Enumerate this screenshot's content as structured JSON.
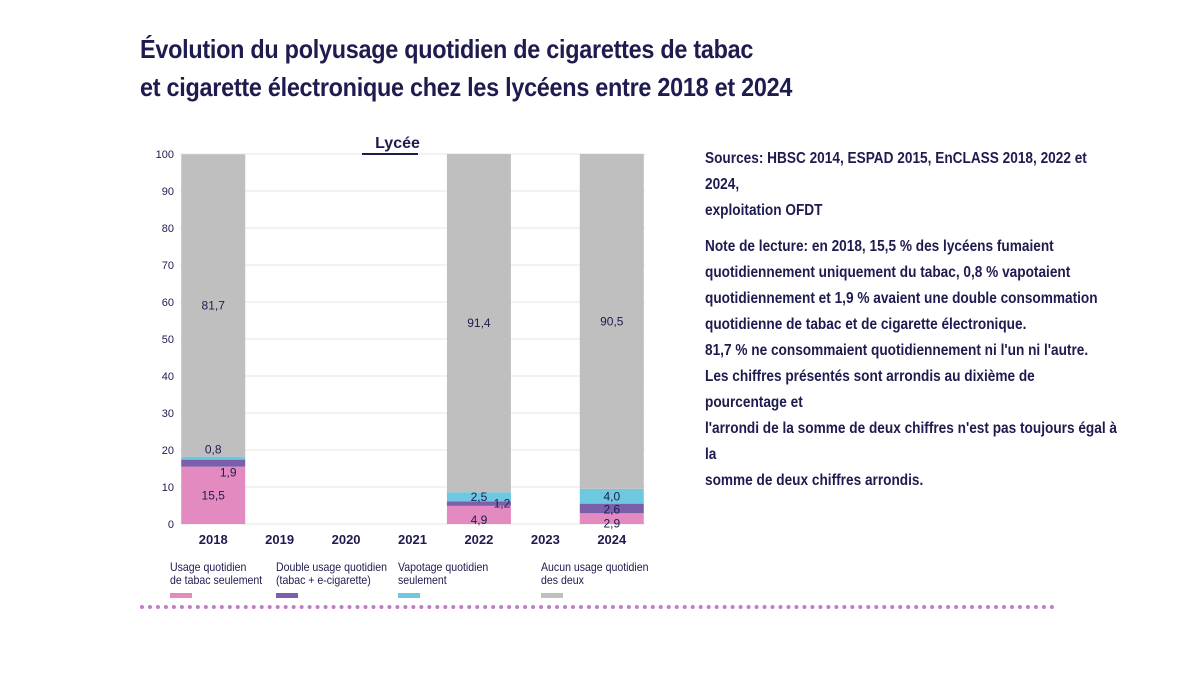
{
  "title": {
    "line1": "Évolution du polyusage quotidien de cigarettes de tabac",
    "line2": "et cigarette électronique chez les lycéens entre 2018 et 2024"
  },
  "sources": "Sources: HBSC 2014, ESPAD 2015, EnCLASS 2018, 2022 et 2024,\nexploitation OFDT",
  "note": "Note de lecture: en 2018, 15,5 % des lycéens fumaient\nquotidiennement uniquement du tabac, 0,8 % vapotaient\nquotidiennement et 1,9 % avaient une double consommation\nquotidienne de tabac et de cigarette électronique.\n81,7 % ne consommaient quotidiennement ni l'un ni l'autre.\nLes chiffres présentés sont arrondis au dixième de pourcentage et\nl'arrondi de la somme de deux chiffres n'est pas toujours égal à la\nsomme de deux chiffres arrondis.",
  "colors": {
    "tabac": "#e38bc0",
    "double": "#7b5fab",
    "vapotage": "#6ec9e0",
    "aucun": "#bfbfbf",
    "text": "#1e1b4f",
    "grid": "#e4e4e4",
    "dots": "#c77ac9"
  },
  "chart_data": {
    "type": "bar",
    "stacked": true,
    "title": "Lycée",
    "xlabel": "",
    "ylabel": "",
    "ylim": [
      0,
      100
    ],
    "yticks": [
      0,
      10,
      20,
      30,
      40,
      50,
      60,
      70,
      80,
      90,
      100
    ],
    "grid": true,
    "legend_position": "bottom",
    "categories": [
      "2018",
      "2019",
      "2020",
      "2021",
      "2022",
      "2023",
      "2024"
    ],
    "series": [
      {
        "key": "tabac",
        "name": "Usage quotidien\nde tabac seulement",
        "values": [
          15.5,
          null,
          null,
          null,
          4.9,
          null,
          2.9
        ],
        "labels": [
          "15,5",
          "",
          "",
          "",
          "4,9",
          "",
          "2,9"
        ]
      },
      {
        "key": "double",
        "name": "Double usage quotidien\n(tabac + e-cigarette)",
        "values": [
          1.9,
          null,
          null,
          null,
          1.2,
          null,
          2.6
        ],
        "labels": [
          "1,9",
          "",
          "",
          "",
          "1,2",
          "",
          "2,6"
        ]
      },
      {
        "key": "vapotage",
        "name": "Vapotage quotidien\n seulement",
        "values": [
          0.8,
          null,
          null,
          null,
          2.5,
          null,
          4.0
        ],
        "labels": [
          "0,8",
          "",
          "",
          "",
          "2,5",
          "",
          "4,0"
        ]
      },
      {
        "key": "aucun",
        "name": "Aucun usage quotidien\ndes deux",
        "values": [
          81.7,
          null,
          null,
          null,
          91.4,
          null,
          90.5
        ],
        "labels": [
          "81,7",
          "",
          "",
          "",
          "91,4",
          "",
          "90,5"
        ]
      }
    ]
  }
}
